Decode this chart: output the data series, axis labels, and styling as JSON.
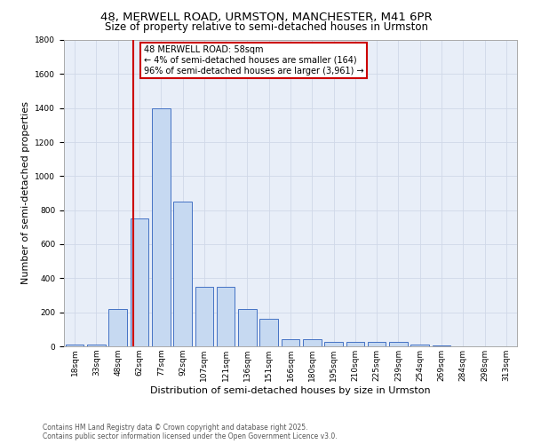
{
  "title_line1": "48, MERWELL ROAD, URMSTON, MANCHESTER, M41 6PR",
  "title_line2": "Size of property relative to semi-detached houses in Urmston",
  "xlabel": "Distribution of semi-detached houses by size in Urmston",
  "ylabel": "Number of semi-detached properties",
  "annotation_title": "48 MERWELL ROAD: 58sqm",
  "annotation_line2": "← 4% of semi-detached houses are smaller (164)",
  "annotation_line3": "96% of semi-detached houses are larger (3,961) →",
  "footer_line1": "Contains HM Land Registry data © Crown copyright and database right 2025.",
  "footer_line2": "Contains public sector information licensed under the Open Government Licence v3.0.",
  "bin_labels": [
    "18sqm",
    "33sqm",
    "48sqm",
    "62sqm",
    "77sqm",
    "92sqm",
    "107sqm",
    "121sqm",
    "136sqm",
    "151sqm",
    "166sqm",
    "180sqm",
    "195sqm",
    "210sqm",
    "225sqm",
    "239sqm",
    "254sqm",
    "269sqm",
    "284sqm",
    "298sqm",
    "313sqm"
  ],
  "bar_heights": [
    10,
    10,
    220,
    750,
    1400,
    850,
    350,
    350,
    220,
    160,
    40,
    40,
    25,
    25,
    25,
    25,
    10,
    5,
    2,
    1,
    0
  ],
  "bar_color": "#c6d9f1",
  "bar_edge_color": "#4472c4",
  "vline_index": 2.67,
  "vline_color": "#cc0000",
  "annotation_box_color": "#cc0000",
  "grid_color": "#d0d8e8",
  "ylim": [
    0,
    1800
  ],
  "yticks": [
    0,
    200,
    400,
    600,
    800,
    1000,
    1200,
    1400,
    1600,
    1800
  ],
  "bg_color": "#e8eef8",
  "title_fontsize": 9.5,
  "subtitle_fontsize": 8.5,
  "axis_fontsize": 8,
  "tick_fontsize": 6.5,
  "annotation_fontsize": 7
}
